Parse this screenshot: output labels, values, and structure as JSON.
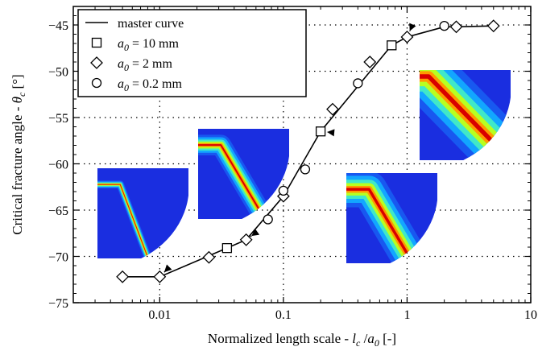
{
  "chart_data": {
    "type": "line",
    "xlabel": "Normalized length scale - l_c /a_0 [-]",
    "xlabel_parts": {
      "prefix": "Normalized length scale - ",
      "var1": "l",
      "sub1": "c",
      "mid": " /",
      "var2": "a",
      "sub2": "0",
      "suffix": " [-]"
    },
    "ylabel": "Critical fracture angle - θ_c [°]",
    "ylabel_parts": {
      "prefix": "Critical fracture angle - ",
      "var": "θ",
      "sub": "c",
      "suffix": " [°]"
    },
    "x_scale": "log",
    "xlim": [
      0.002,
      10
    ],
    "ylim": [
      -75,
      -43
    ],
    "x_ticks": [
      0.01,
      0.1,
      1,
      10
    ],
    "x_tick_labels": [
      "0.01",
      "0.1",
      "1",
      "10"
    ],
    "y_ticks": [
      -75,
      -70,
      -65,
      -60,
      -55,
      -50,
      -45
    ],
    "y_tick_labels": [
      "−75",
      "−70",
      "−65",
      "−60",
      "−55",
      "−50",
      "−45"
    ],
    "grid": "dotted",
    "legend_position": "top-left",
    "series": [
      {
        "name": "master curve",
        "marker": "none",
        "x": [
          0.005,
          0.01,
          0.035,
          0.05,
          0.1,
          0.2,
          0.75,
          1,
          2,
          2.5,
          5
        ],
        "y": [
          -72.2,
          -72.2,
          -69.1,
          -68.2,
          -63.5,
          -56.5,
          -47.2,
          -46.3,
          -45.2,
          -45.2,
          -45.1
        ]
      },
      {
        "name": "a_0 = 10 mm",
        "name_parts": {
          "var": "a",
          "sub": "0",
          "suffix": " = 10 mm"
        },
        "marker": "square",
        "x": [
          0.035,
          0.2,
          0.75
        ],
        "y": [
          -69.1,
          -56.5,
          -47.2
        ]
      },
      {
        "name": "a_0 = 2 mm",
        "name_parts": {
          "var": "a",
          "sub": "0",
          "suffix": " = 2 mm"
        },
        "marker": "diamond",
        "x": [
          0.005,
          0.01,
          0.025,
          0.05,
          0.1,
          0.25,
          0.5,
          1,
          2.5,
          5
        ],
        "y": [
          -72.2,
          -72.2,
          -70.1,
          -68.2,
          -63.5,
          -54.1,
          -49.0,
          -46.3,
          -45.2,
          -45.1
        ]
      },
      {
        "name": "a_0 = 0.2 mm",
        "name_parts": {
          "var": "a",
          "sub": "0",
          "suffix": " = 0.2 mm"
        },
        "marker": "circle",
        "x": [
          0.075,
          0.1,
          0.15,
          0.4,
          2
        ],
        "y": [
          -66.0,
          -62.9,
          -60.6,
          -51.3,
          -45.1
        ]
      }
    ],
    "annotations": [
      {
        "name": "inset-1",
        "points_to": {
          "x": 0.01,
          "y": -72.2
        }
      },
      {
        "name": "inset-2",
        "points_to": {
          "x": 0.05,
          "y": -68.2
        }
      },
      {
        "name": "inset-3",
        "points_to": {
          "x": 0.2,
          "y": -56.5
        }
      },
      {
        "name": "inset-4",
        "points_to": {
          "x": 1,
          "y": -46.3
        }
      }
    ]
  }
}
